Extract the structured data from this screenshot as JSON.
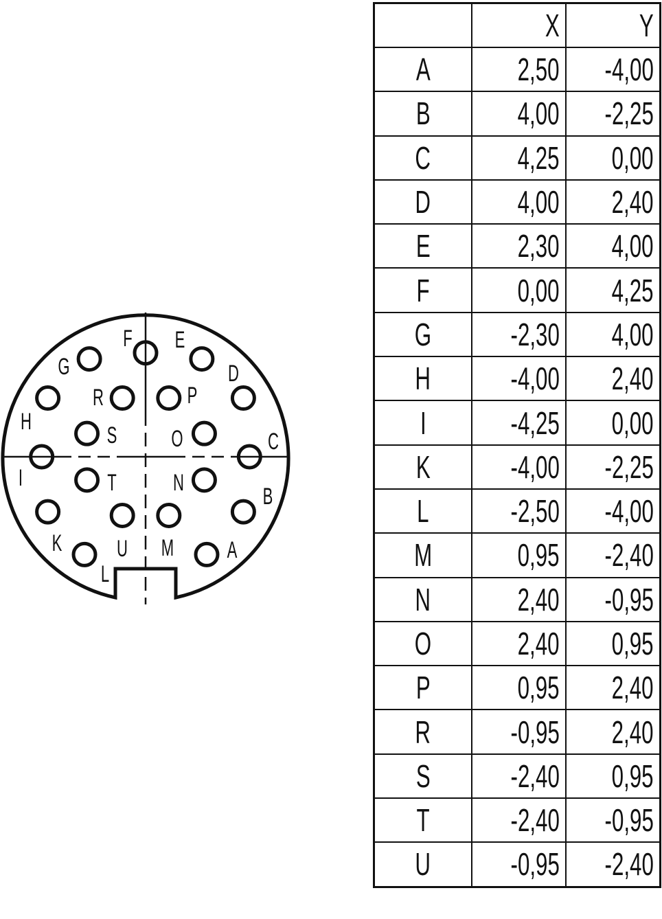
{
  "table": {
    "headers": [
      "",
      "X",
      "Y"
    ],
    "rows": [
      {
        "pin": "A",
        "x": "2,50",
        "y": "-4,00"
      },
      {
        "pin": "B",
        "x": "4,00",
        "y": "-2,25"
      },
      {
        "pin": "C",
        "x": "4,25",
        "y": "0,00"
      },
      {
        "pin": "D",
        "x": "4,00",
        "y": "2,40"
      },
      {
        "pin": "E",
        "x": "2,30",
        "y": "4,00"
      },
      {
        "pin": "F",
        "x": "0,00",
        "y": "4,25"
      },
      {
        "pin": "G",
        "x": "-2,30",
        "y": "4,00"
      },
      {
        "pin": "H",
        "x": "-4,00",
        "y": "2,40"
      },
      {
        "pin": "I",
        "x": "-4,25",
        "y": "0,00"
      },
      {
        "pin": "K",
        "x": "-4,00",
        "y": "-2,25"
      },
      {
        "pin": "L",
        "x": "-2,50",
        "y": "-4,00"
      },
      {
        "pin": "M",
        "x": "0,95",
        "y": "-2,40"
      },
      {
        "pin": "N",
        "x": "2,40",
        "y": "-0,95"
      },
      {
        "pin": "O",
        "x": "2,40",
        "y": "0,95"
      },
      {
        "pin": "P",
        "x": "0,95",
        "y": "2,40"
      },
      {
        "pin": "R",
        "x": "-0,95",
        "y": "2,40"
      },
      {
        "pin": "S",
        "x": "-2,40",
        "y": "0,95"
      },
      {
        "pin": "T",
        "x": "-2,40",
        "y": "-0,95"
      },
      {
        "pin": "U",
        "x": "-0,95",
        "y": "-2,40"
      }
    ]
  }
}
